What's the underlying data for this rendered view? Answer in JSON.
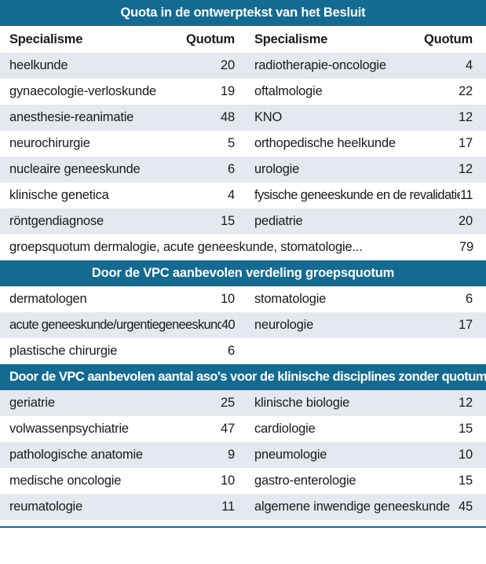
{
  "title": "Quota in de ontwerptekst van het Besluit",
  "column_headers": {
    "left_specialism": "Specialisme",
    "left_quota": "Quotum",
    "right_specialism": "Specialisme",
    "right_quota": "Quotum"
  },
  "quota_rows": [
    {
      "l_name": "heelkunde",
      "l_val": "20",
      "r_name": "radiotherapie-oncologie",
      "r_val": "4"
    },
    {
      "l_name": "gynaecologie-verloskunde",
      "l_val": "19",
      "r_name": "oftalmologie",
      "r_val": "22"
    },
    {
      "l_name": "anesthesie-reanimatie",
      "l_val": "48",
      "r_name": "KNO",
      "r_val": "12"
    },
    {
      "l_name": "neurochirurgie",
      "l_val": "5",
      "r_name": "orthopedische heelkunde",
      "r_val": "17"
    },
    {
      "l_name": "nucleaire geneeskunde",
      "l_val": "6",
      "r_name": "urologie",
      "r_val": "12"
    },
    {
      "l_name": "klinische genetica",
      "l_val": "4",
      "r_name": "fysische geneeskunde en de revalidatie",
      "r_val": "11"
    },
    {
      "l_name": "röntgendiagnose",
      "l_val": "15",
      "r_name": "pediatrie",
      "r_val": "20"
    }
  ],
  "group_quota": {
    "name": "groepsquotum dermalogie, acute geneeskunde, stomatologie...",
    "val": "79"
  },
  "section2_title": "Door de VPC aanbevolen verdeling groepsquotum",
  "section2_rows": [
    {
      "l_name": "dermatologen",
      "l_val": "10",
      "r_name": "stomatologie",
      "r_val": "6"
    },
    {
      "l_name": "acute geneeskunde/urgentiegeneeskunde",
      "l_val": "40",
      "r_name": "neurologie",
      "r_val": "17"
    },
    {
      "l_name": "plastische chirurgie",
      "l_val": "6",
      "r_name": "",
      "r_val": ""
    }
  ],
  "section3_title": "Door de VPC aanbevolen aantal aso's voor de klinische disciplines zonder quotum",
  "section3_rows": [
    {
      "l_name": "geriatrie",
      "l_val": "25",
      "r_name": "klinische biologie",
      "r_val": "12"
    },
    {
      "l_name": "volwassenpsychiatrie",
      "l_val": "47",
      "r_name": "cardiologie",
      "r_val": "15"
    },
    {
      "l_name": "pathologische anatomie",
      "l_val": "9",
      "r_name": "pneumologie",
      "r_val": "10"
    },
    {
      "l_name": "medische oncologie",
      "l_val": "10",
      "r_name": "gastro-enterologie",
      "r_val": "15"
    },
    {
      "l_name": "reumatologie",
      "l_val": "11",
      "r_name": "algemene inwendige geneeskunde",
      "r_val": "45"
    }
  ]
}
